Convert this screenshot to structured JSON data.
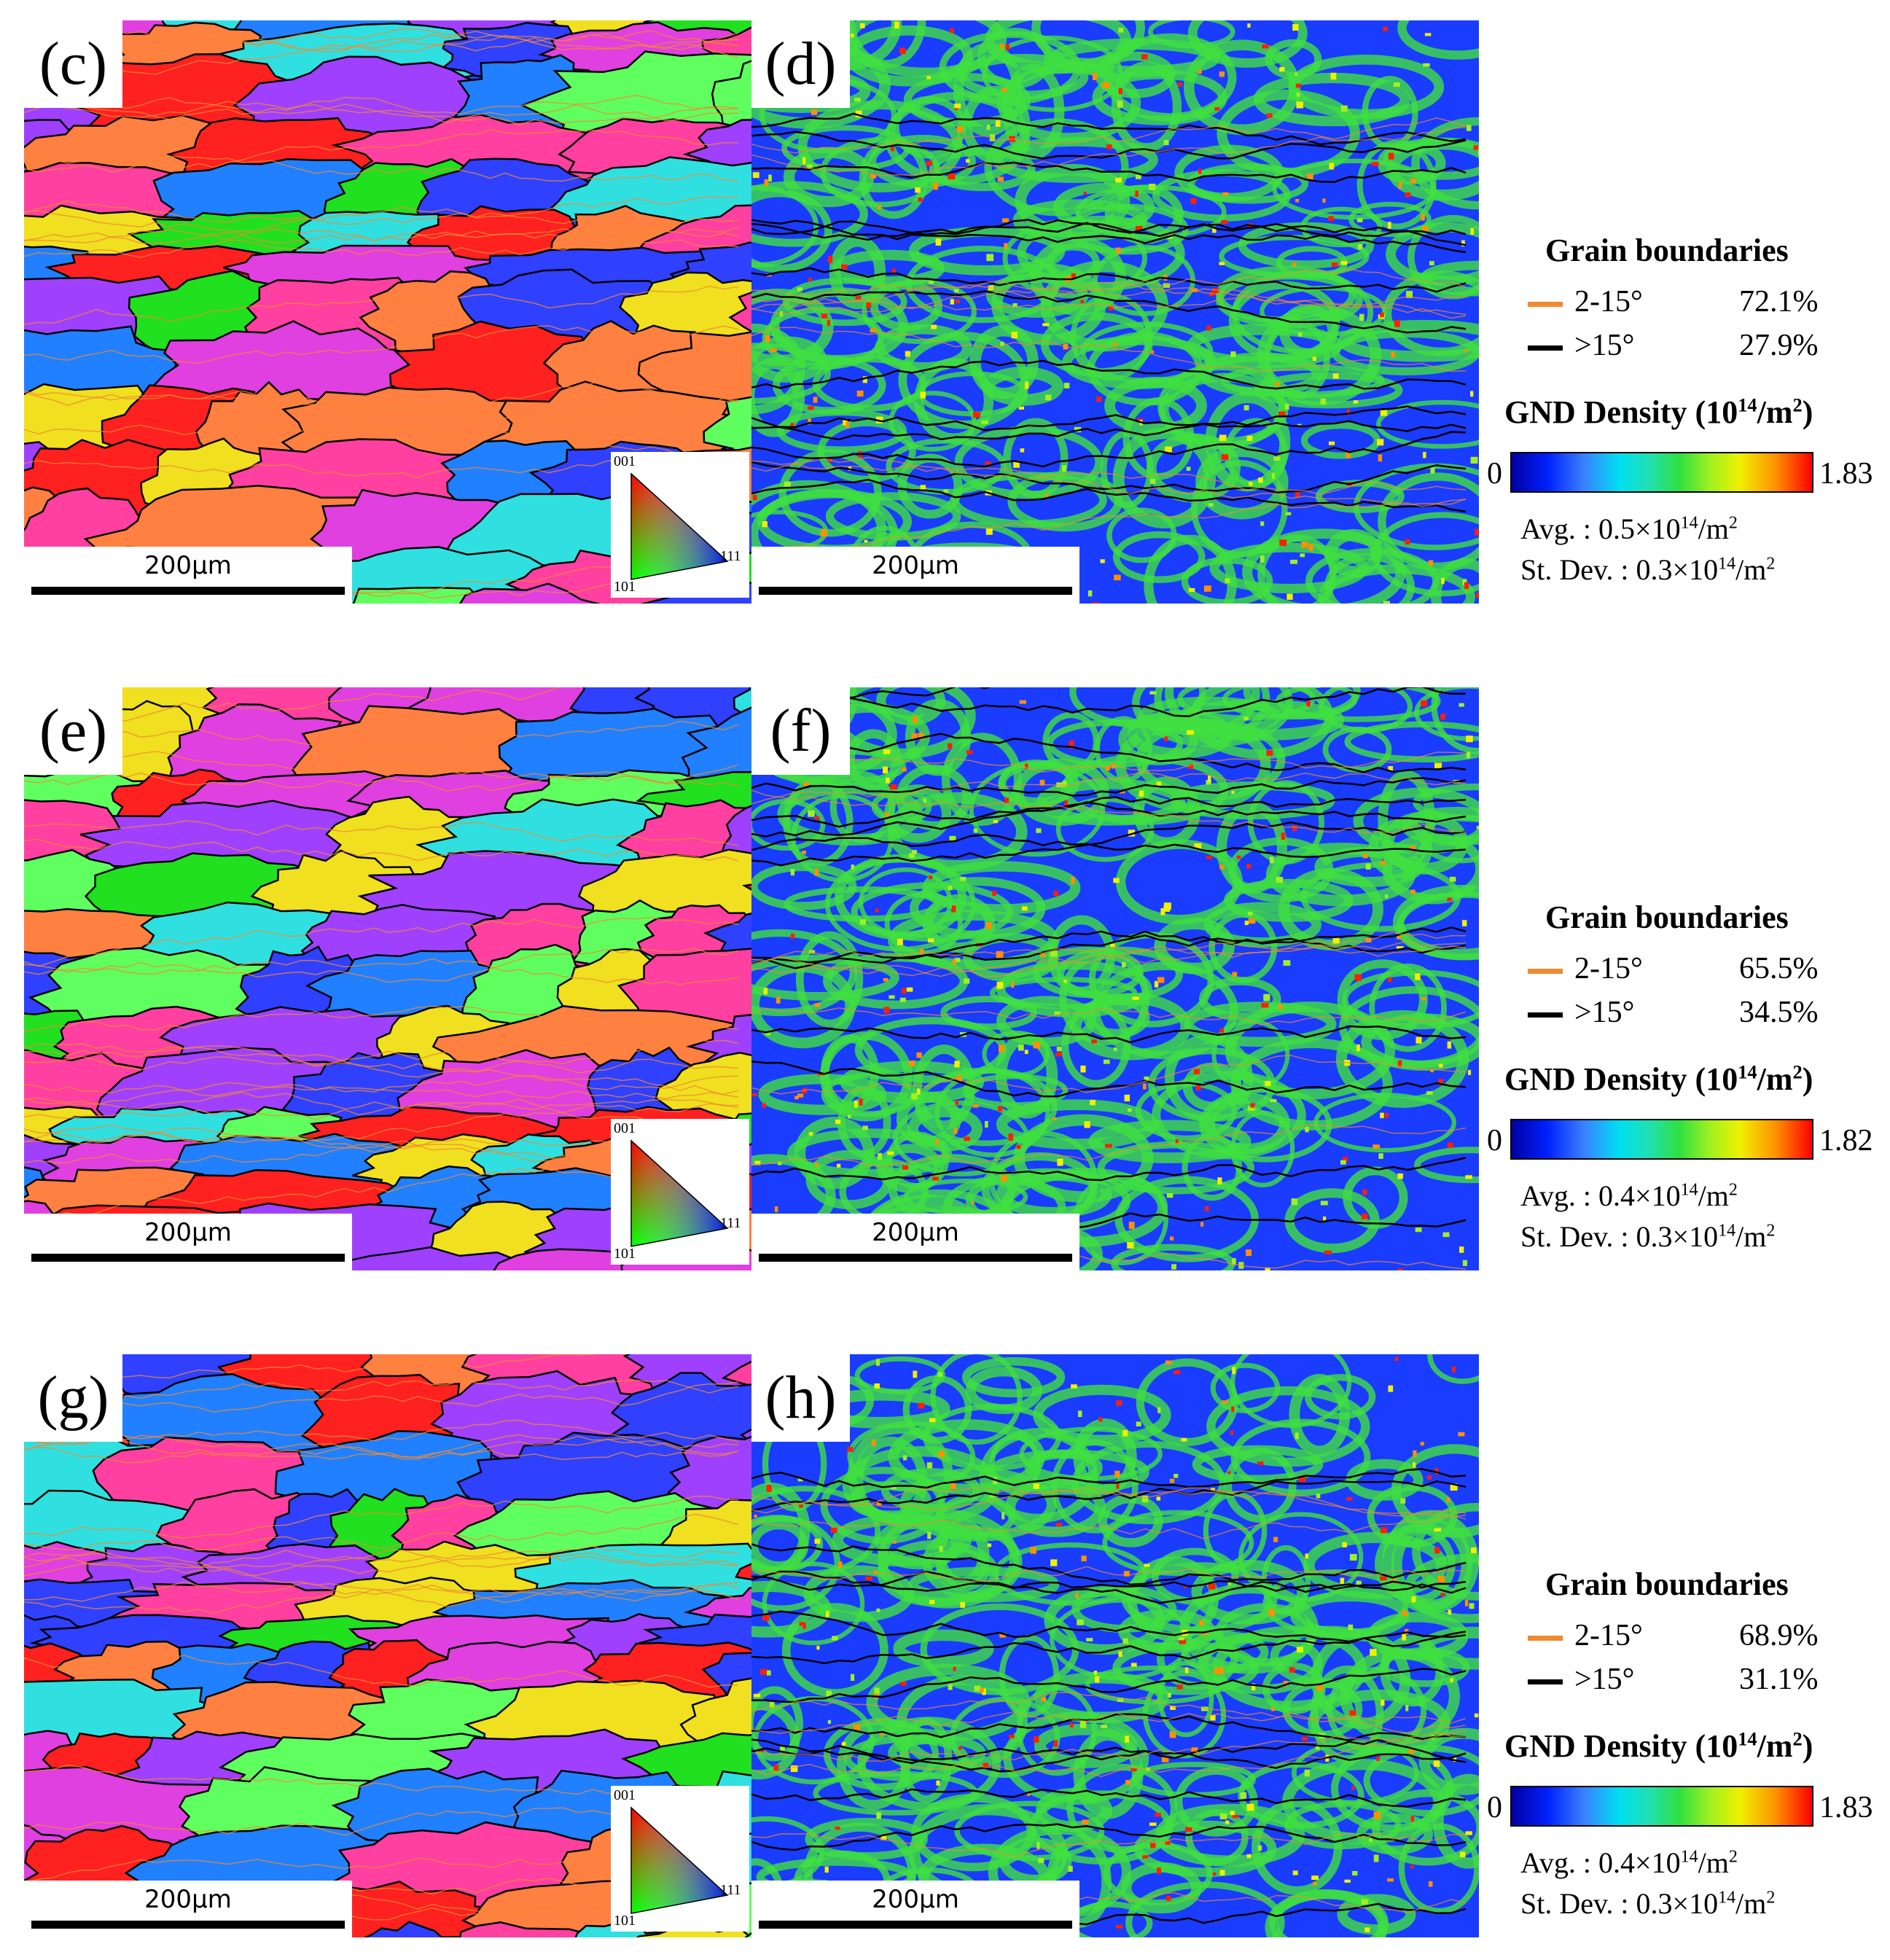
{
  "panels": [
    {
      "ipf_label": "(c)",
      "gnd_label": "(d)",
      "scale_bar": "200μm",
      "ipf_key": {
        "top": "001",
        "bottom": "101",
        "right": "111"
      },
      "legend": {
        "gb_title": "Grain boundaries",
        "low_angle_name": "2-15°",
        "low_angle_pct": "72.1%",
        "high_angle_name": ">15°",
        "high_angle_pct": "27.9%",
        "gnd_title_prefix": "GND Density (10",
        "gnd_title_exp": "14",
        "gnd_title_suffix": "/m",
        "gnd_title_exp2": "2",
        "gnd_title_end": ")",
        "cbar_min": "0",
        "cbar_max": "1.83",
        "avg_prefix": "Avg. : 0.5×10",
        "avg_exp": "14",
        "avg_unit": "/m",
        "avg_exp2": "2",
        "std_prefix": "St. Dev. : 0.3×10",
        "std_exp": "14",
        "std_unit": "/m",
        "std_exp2": "2"
      }
    },
    {
      "ipf_label": "(e)",
      "gnd_label": "(f)",
      "scale_bar": "200μm",
      "ipf_key": {
        "top": "001",
        "bottom": "101",
        "right": "111"
      },
      "legend": {
        "gb_title": "Grain boundaries",
        "low_angle_name": "2-15°",
        "low_angle_pct": "65.5%",
        "high_angle_name": ">15°",
        "high_angle_pct": "34.5%",
        "gnd_title_prefix": "GND Density (10",
        "gnd_title_exp": "14",
        "gnd_title_suffix": "/m",
        "gnd_title_exp2": "2",
        "gnd_title_end": ")",
        "cbar_min": "0",
        "cbar_max": "1.82",
        "avg_prefix": "Avg. : 0.4×10",
        "avg_exp": "14",
        "avg_unit": "/m",
        "avg_exp2": "2",
        "std_prefix": "St. Dev. : 0.3×10",
        "std_exp": "14",
        "std_unit": "/m",
        "std_exp2": "2"
      }
    },
    {
      "ipf_label": "(g)",
      "gnd_label": "(h)",
      "scale_bar": "200μm",
      "ipf_key": {
        "top": "001",
        "bottom": "101",
        "right": "111"
      },
      "legend": {
        "gb_title": "Grain boundaries",
        "low_angle_name": "2-15°",
        "low_angle_pct": "68.9%",
        "high_angle_name": ">15°",
        "high_angle_pct": "31.1%",
        "gnd_title_prefix": "GND Density (10",
        "gnd_title_exp": "14",
        "gnd_title_suffix": "/m",
        "gnd_title_exp2": "2",
        "gnd_title_end": ")",
        "cbar_min": "0",
        "cbar_max": "1.83",
        "avg_prefix": "Avg. : 0.4×10",
        "avg_exp": "14",
        "avg_unit": "/m",
        "avg_exp2": "2",
        "std_prefix": "St. Dev. : 0.3×10",
        "std_exp": "14",
        "std_unit": "/m",
        "std_exp2": "2"
      }
    }
  ],
  "colors": {
    "low_angle_boundary": "#f08a30",
    "high_angle_boundary": "#000000",
    "ipf_grain_palette": [
      "#ff2020",
      "#20e020",
      "#3040ff",
      "#e040e0",
      "#a040ff",
      "#30e0e0",
      "#ff40a0",
      "#f0e020",
      "#ff8040",
      "#60ff60",
      "#2080ff"
    ],
    "gnd_background": "#1a3cff",
    "gnd_high": "#40e040"
  }
}
